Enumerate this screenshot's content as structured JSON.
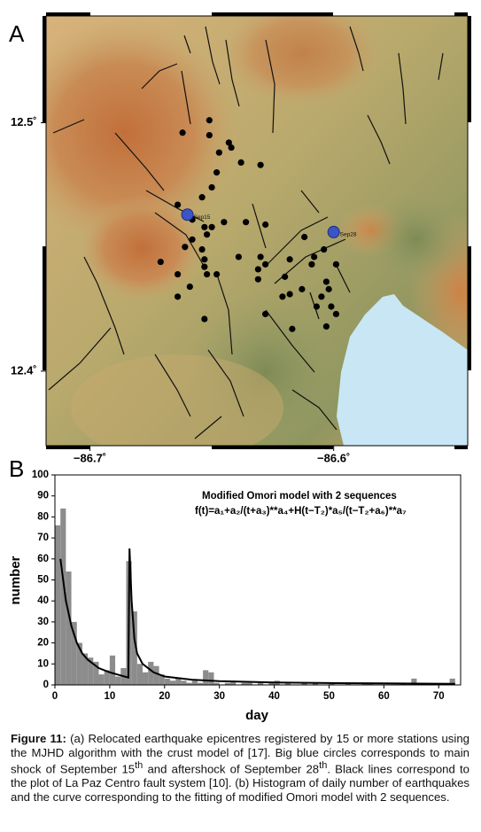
{
  "map": {
    "panel_label": "A",
    "lonlim": [
      -86.718,
      -86.545
    ],
    "latlim": [
      12.37,
      12.543
    ],
    "lonticks": [
      {
        "value": -86.7,
        "label": "−86.7˚"
      },
      {
        "value": -86.6,
        "label": "−86.6˚"
      }
    ],
    "latticks": [
      {
        "value": 12.5,
        "label": "12.5˚"
      },
      {
        "value": 12.4,
        "label": "12.4˚"
      }
    ],
    "epicentres": {
      "lon": [
        -86.662,
        -86.651,
        -86.651,
        -86.643,
        -86.642,
        -86.647,
        -86.638,
        -86.63,
        -86.648,
        -86.65,
        -86.654,
        -86.664,
        -86.658,
        -86.645,
        -86.636,
        -86.65,
        -86.653,
        -86.628,
        -86.652,
        -86.658,
        -86.661,
        -86.612,
        -86.671,
        -86.654,
        -86.653,
        -86.653,
        -86.639,
        -86.63,
        -86.628,
        -86.631,
        -86.618,
        -86.608,
        -86.609,
        -86.604,
        -86.599,
        -86.664,
        -86.659,
        -86.664,
        -86.648,
        -86.652,
        -86.631,
        -86.62,
        -86.618,
        -86.621,
        -86.613,
        -86.603,
        -86.602,
        -86.605,
        -86.601,
        -86.607,
        -86.599,
        -86.628,
        -86.653,
        -86.617,
        -86.603
      ],
      "lat": [
        12.496,
        12.501,
        12.495,
        12.492,
        12.49,
        12.488,
        12.484,
        12.483,
        12.48,
        12.474,
        12.47,
        12.467,
        12.461,
        12.46,
        12.46,
        12.458,
        12.458,
        12.459,
        12.455,
        12.453,
        12.45,
        12.454,
        12.444,
        12.449,
        12.445,
        12.442,
        12.446,
        12.446,
        12.443,
        12.441,
        12.445,
        12.446,
        12.443,
        12.449,
        12.443,
        12.439,
        12.434,
        12.43,
        12.439,
        12.439,
        12.437,
        12.438,
        12.431,
        12.43,
        12.433,
        12.436,
        12.433,
        12.43,
        12.426,
        12.426,
        12.423,
        12.423,
        12.421,
        12.417,
        12.418
      ]
    },
    "main_shocks": [
      {
        "name": "Sep15",
        "lon": -86.66,
        "lat": 12.463,
        "color": "#3b55c4"
      },
      {
        "name": "Sep28",
        "lon": -86.6,
        "lat": 12.456,
        "color": "#3b55c4"
      }
    ]
  },
  "chart_data": {
    "type": "histogram",
    "panel_label": "B",
    "title": "Modified Omori model with 2 sequences",
    "subtitle": "f(t)=a₁+a₂/(t+a₃)**a₄+H(t−T₂)*a₅/(t−T₂+a₆)**a₇",
    "xlabel": "day",
    "ylabel": "number",
    "bins": [
      0,
      1,
      2,
      3,
      4,
      5,
      6,
      7,
      8,
      9,
      10,
      11,
      12,
      13,
      14,
      15,
      16,
      17,
      18,
      19,
      20,
      21,
      22,
      23,
      24,
      25,
      26,
      27,
      28,
      29,
      30,
      31,
      32,
      33,
      34,
      35,
      36,
      37,
      38,
      39,
      40,
      41,
      42,
      43,
      44,
      45,
      46,
      47,
      48,
      49,
      50,
      51,
      52,
      53,
      54,
      55,
      56,
      57,
      58,
      59,
      60,
      61,
      62,
      63,
      64,
      65,
      66,
      67,
      68,
      69,
      70,
      71,
      72,
      73,
      74
    ],
    "counts": [
      76,
      84,
      54,
      30,
      20,
      15,
      13,
      11,
      5,
      7,
      14,
      4,
      8,
      59,
      35,
      10,
      6,
      11,
      9,
      5,
      3,
      2,
      3,
      2,
      1,
      2,
      1,
      7,
      6,
      1,
      0,
      1,
      2,
      0,
      1,
      1,
      0,
      1,
      0,
      1,
      2,
      0,
      1,
      0,
      0,
      1,
      0,
      1,
      0,
      0,
      1,
      0,
      0,
      1,
      0,
      0,
      1,
      1,
      0,
      0,
      0,
      0,
      0,
      1,
      0,
      3,
      0,
      0,
      0,
      0,
      0,
      0,
      3,
      0
    ],
    "color": "#8c8c8c",
    "fit_curve": {
      "x": [
        1,
        2,
        3,
        4,
        5,
        6,
        8,
        10,
        12,
        13.4,
        13.6,
        14,
        14.5,
        15,
        16,
        18,
        20,
        25,
        30,
        40,
        50,
        60,
        73
      ],
      "values": [
        60,
        40,
        28,
        20,
        15,
        12,
        8,
        6,
        4.5,
        3.5,
        65,
        40,
        22,
        15,
        10,
        6,
        4,
        2.5,
        1.8,
        1.2,
        0.9,
        0.7,
        0.5
      ],
      "color": "#000000"
    },
    "xlim": [
      0,
      74
    ],
    "ylim": [
      0,
      100
    ],
    "xticks": [
      0,
      10,
      20,
      30,
      40,
      50,
      60,
      70
    ],
    "yticks": [
      0,
      10,
      20,
      30,
      40,
      50,
      60,
      70,
      80,
      90,
      100
    ]
  },
  "caption": {
    "label": "Figure 11:",
    "parts": [
      " (a) Relocated earthquake epicentres registered by 15 or more stations using the MJHD algorithm with the crust model of [17]. Big blue circles corresponds to main shock of September 15",
      "th",
      " and aftershock of September 28",
      "th",
      ". Black lines correspond to the plot of La Paz Centro fault system [10]. (b) Histogram of daily number of earthquakes and the curve corresponding to the fitting of modified Omori model with 2 sequences."
    ]
  }
}
